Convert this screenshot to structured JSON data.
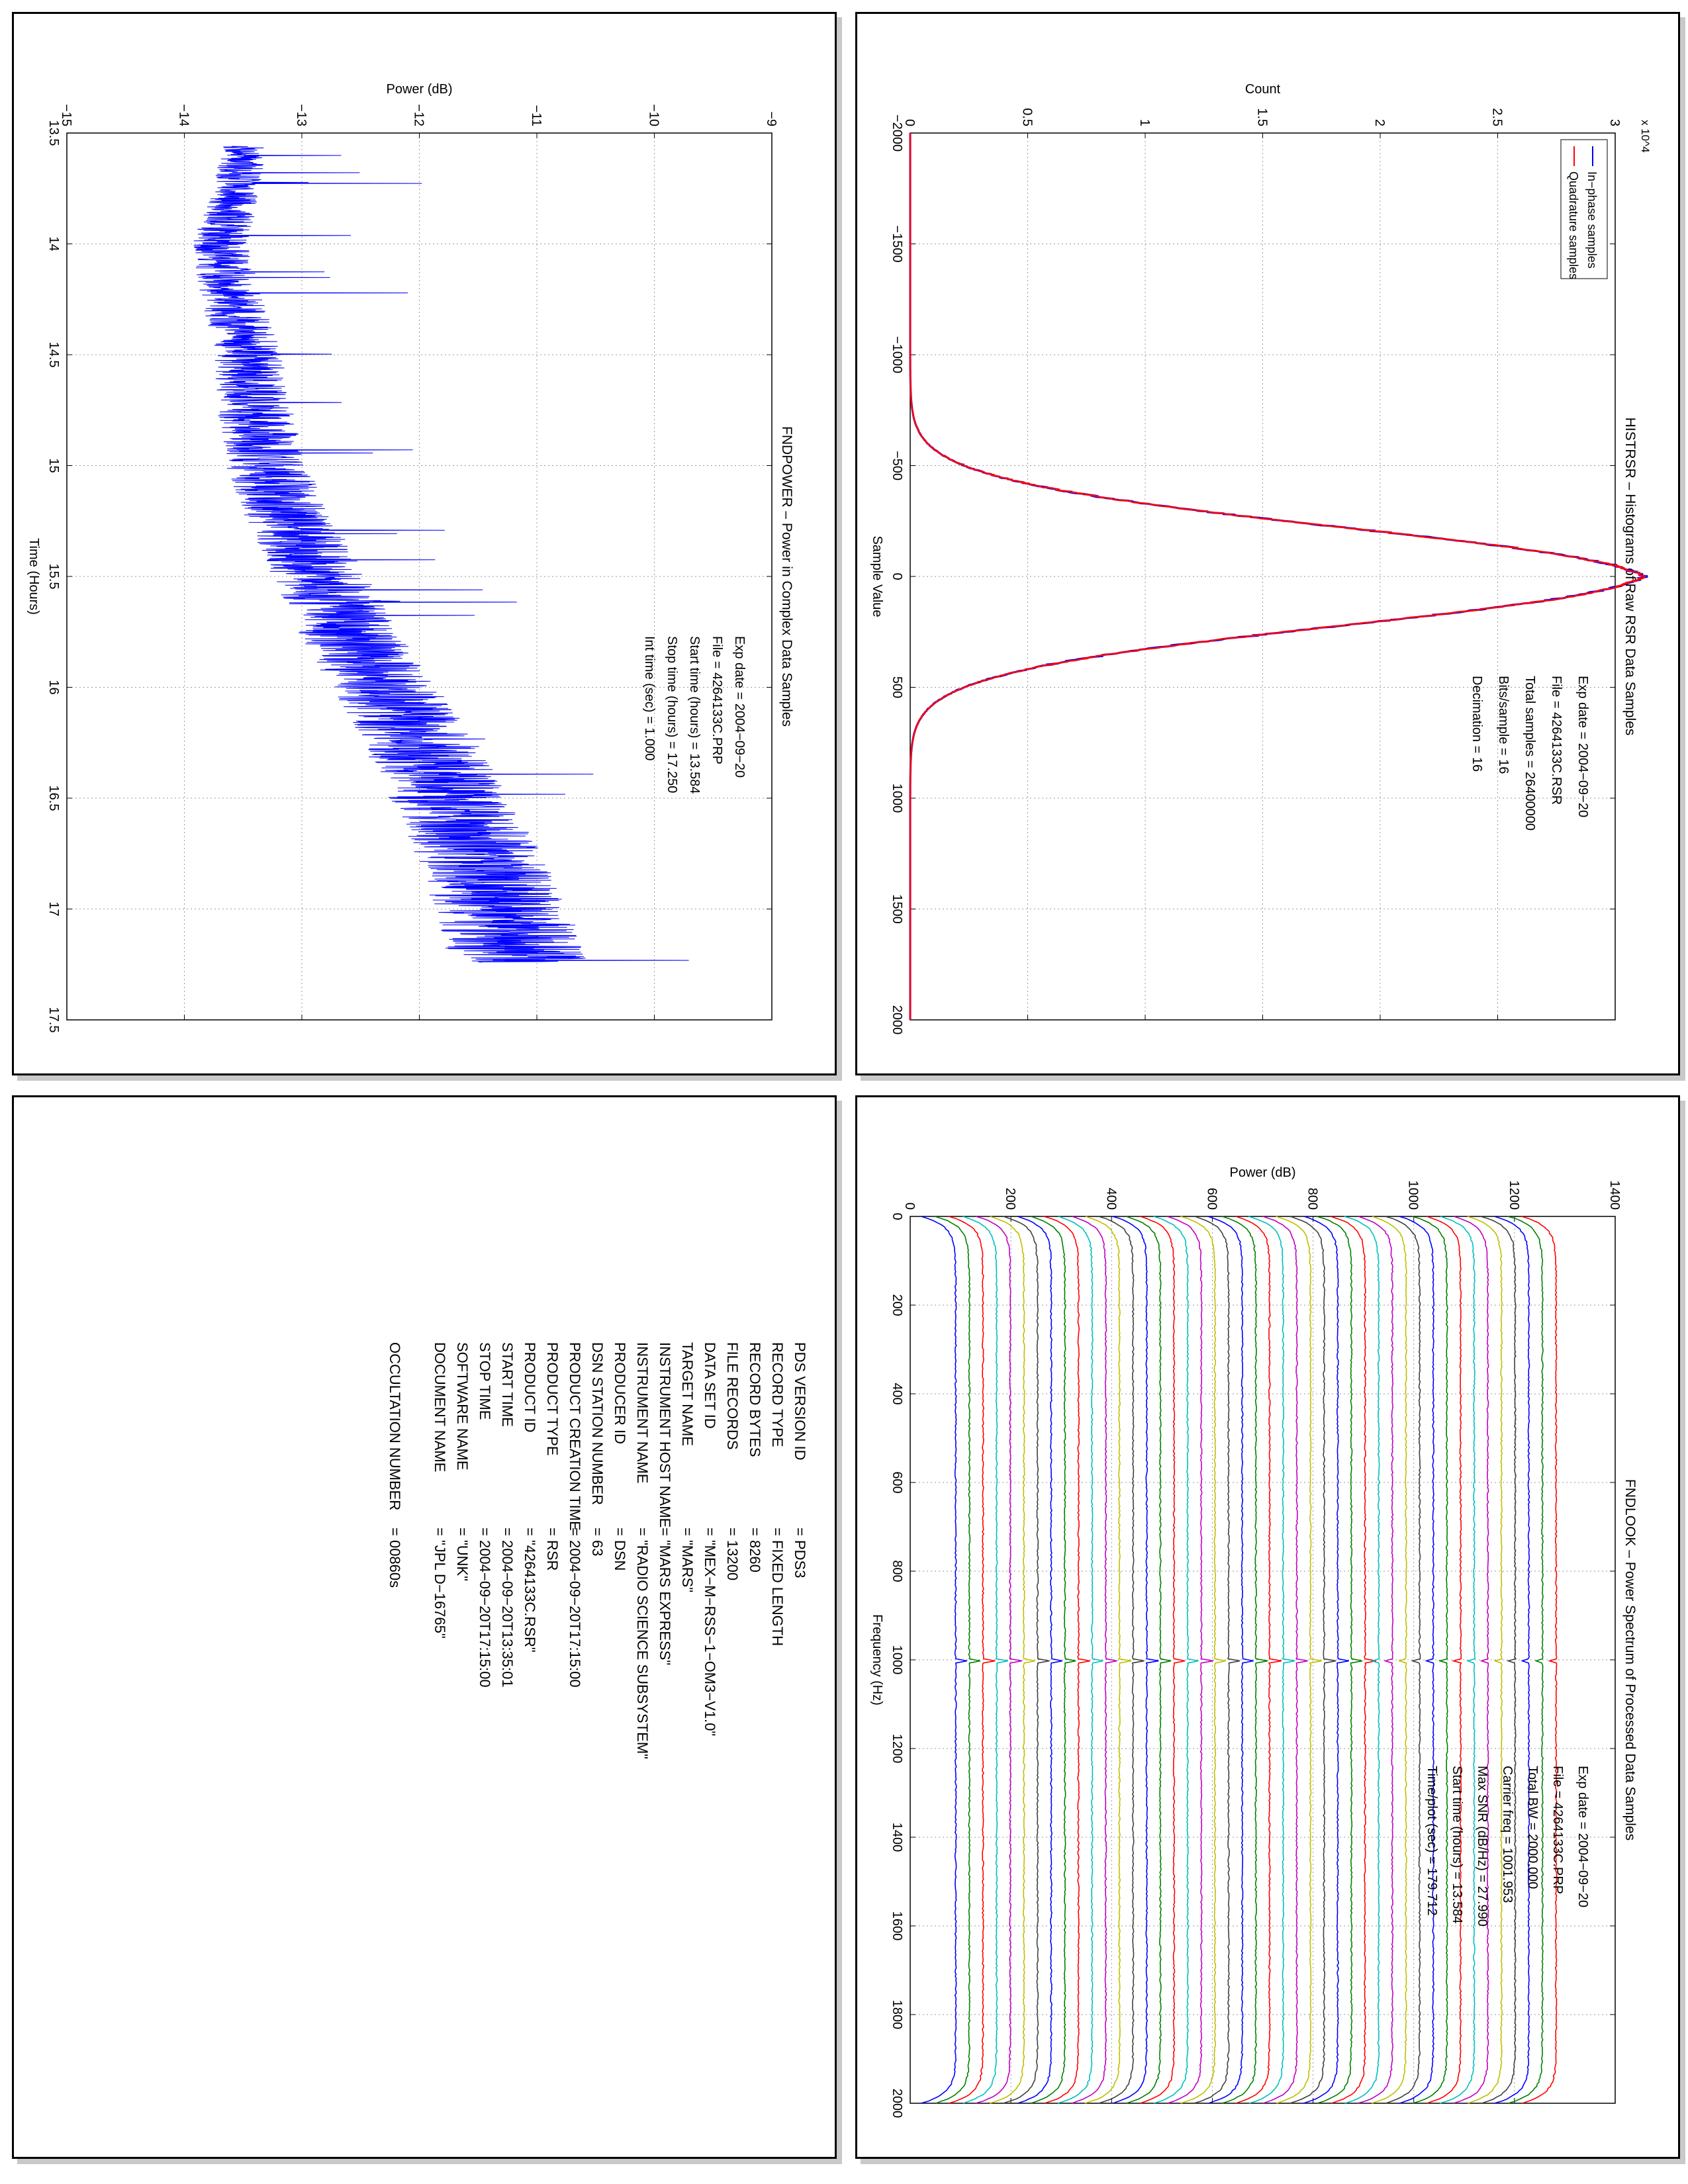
{
  "chart_data": [
    {
      "type": "line",
      "title": "FNDPOWER – Power in Complex Data Samples",
      "xlabel": "Time (Hours)",
      "ylabel": "Power (dB)",
      "xlim": [
        13.5,
        17.5
      ],
      "ylim": [
        -15,
        -9
      ],
      "xticks": [
        "13.5",
        "14",
        "14.5",
        "15",
        "15.5",
        "16",
        "16.5",
        "17",
        "17.5"
      ],
      "yticks": [
        "−15",
        "−14",
        "−13",
        "−12",
        "−11",
        "−10",
        "−9"
      ],
      "grid": true,
      "series": [
        {
          "color": "#0000ff",
          "x": [
            13.56,
            13.75,
            14.0,
            14.25,
            14.5,
            14.75,
            15.0,
            15.25,
            15.5,
            15.75,
            16.0,
            16.25,
            16.5,
            16.75,
            17.0,
            17.24
          ],
          "y": [
            -13.5,
            -13.55,
            -13.7,
            -13.6,
            -13.45,
            -13.4,
            -13.3,
            -13.1,
            -12.85,
            -12.6,
            -12.3,
            -12.0,
            -11.75,
            -11.5,
            -11.3,
            -11.15
          ]
        }
      ],
      "annotations": [
        "Exp date = 2004−09−20",
        "File = 4264133C.PRP",
        "Start time (hours) = 13.584",
        "Stop time (hours) = 17.250",
        "Int time (sec) = 1.000"
      ]
    },
    {
      "type": "line",
      "title": "HISTRSR – Histograms of Raw RSR Data Samples",
      "xlabel": "Sample Value",
      "ylabel": "Count",
      "xlim": [
        -2000,
        2000
      ],
      "ylim": [
        0,
        3
      ],
      "y_multiplier": "x 10^4",
      "xticks": [
        "−2000",
        "−1500",
        "−1000",
        "−500",
        "0",
        "500",
        "1000",
        "1500",
        "2000"
      ],
      "yticks": [
        "0",
        "0.5",
        "1",
        "1.5",
        "2",
        "2.5",
        "3"
      ],
      "grid": true,
      "legend_position": "top-left",
      "series": [
        {
          "name": "In−phase samples",
          "color": "#0000ff",
          "peak": 3.05,
          "sigma": 220
        },
        {
          "name": "Quadrature samples",
          "color": "#ff0000",
          "peak": 3.05,
          "sigma": 220
        }
      ],
      "annotations": [
        "Exp date = 2004−09−20",
        "File = 4264133C.RSR",
        "Total samples = 26400000",
        "Bits/sample = 16",
        "Decimation = 16"
      ]
    },
    {
      "type": "line",
      "title": "FNDLOOK – Power Spectrum of Processed Data Samples",
      "xlabel": "Frequency (Hz)",
      "ylabel": "Power (dB)",
      "xlim": [
        0,
        2000
      ],
      "ylim": [
        -100,
        1450
      ],
      "xticks": [
        "0",
        "200",
        "400",
        "600",
        "800",
        "1000",
        "1200",
        "1400",
        "1600",
        "1800",
        "2000"
      ],
      "yticks": [
        "0",
        "200",
        "400",
        "600",
        "800",
        "1000",
        "1200",
        "1400"
      ],
      "grid": true,
      "trace_count": 45,
      "trace_spacing": 30,
      "carrier_hz": 1001.953,
      "trace_colors": [
        "#0000ff",
        "#008000",
        "#ff0000",
        "#00bfbf",
        "#bf00bf",
        "#bfbf00",
        "#404040"
      ],
      "annotations": [
        "Exp date = 2004−09−20",
        "File = 4264133C.PRP",
        "Total BW = 2000.000",
        "Carrier freq = 1001.953",
        "Max SNR (dB/Hz) = 27.990",
        "Start time (hours) = 13.584",
        "Time/plot (sec) = 179.712"
      ]
    }
  ],
  "label_sheet": {
    "rows": [
      {
        "key": "PDS VERSION ID",
        "value": "= PDS3"
      },
      {
        "key": "RECORD TYPE",
        "value": "= FIXED LENGTH"
      },
      {
        "key": "RECORD BYTES",
        "value": "= 8260"
      },
      {
        "key": "FILE RECORDS",
        "value": "= 13200"
      },
      {
        "key": "DATA SET ID",
        "value": "= \"MEX−M−RSS−1−OM3−V1.0\""
      },
      {
        "key": "TARGET NAME",
        "value": "= \"MARS\""
      },
      {
        "key": "INSTRUMENT HOST NAME",
        "value": "= \"MARS EXPRESS\""
      },
      {
        "key": "INSTRUMENT NAME",
        "value": "= \"RADIO SCIENCE SUBSYSTEM\""
      },
      {
        "key": "PRODUCER ID",
        "value": "= DSN"
      },
      {
        "key": "DSN STATION NUMBER",
        "value": "= 63"
      },
      {
        "key": "PRODUCT CREATION TIME",
        "value": "= 2004−09−20T17:15:00"
      },
      {
        "key": "PRODUCT TYPE",
        "value": "= RSR"
      },
      {
        "key": "PRODUCT ID",
        "value": "= \"4264133C.RSR\""
      },
      {
        "key": "START TIME",
        "value": "= 2004−09−20T13:35:01"
      },
      {
        "key": "STOP TIME",
        "value": "= 2004−09−20T17:15:00"
      },
      {
        "key": "SOFTWARE NAME",
        "value": "= \"UNK\""
      },
      {
        "key": "DOCUMENT NAME",
        "value": "= \"JPL D−16765\""
      },
      {
        "key": "",
        "value": ""
      },
      {
        "key": "OCCULTATION NUMBER",
        "value": "= 00860s"
      }
    ]
  }
}
